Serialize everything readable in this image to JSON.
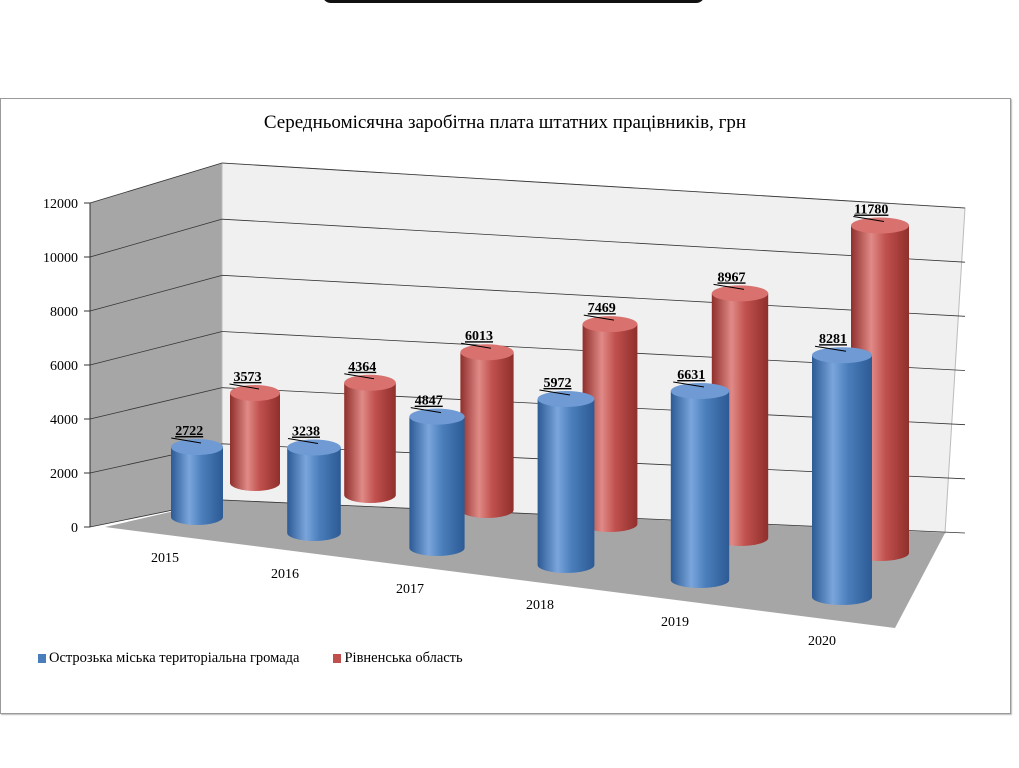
{
  "chart_data": {
    "type": "bar",
    "style": "3d-cylinder",
    "title": "Середньомісячна заробітна плата штатних працівників, грн",
    "categories": [
      "2015",
      "2016",
      "2017",
      "2018",
      "2019",
      "2020"
    ],
    "series": [
      {
        "name": "Острозька міська територіальна громада",
        "color": "#4a7ebb",
        "values": [
          2722,
          3238,
          4847,
          5972,
          6631,
          8281
        ]
      },
      {
        "name": "Рівненська область",
        "color": "#c0504d",
        "values": [
          3573,
          4364,
          6013,
          7469,
          8967,
          11780
        ]
      }
    ],
    "yticks": [
      "0",
      "2000",
      "4000",
      "6000",
      "8000",
      "10000",
      "12000"
    ],
    "ylim": [
      0,
      12000
    ],
    "grid": true,
    "legend": "bottom-left",
    "data_labels": [
      "2722",
      "3238",
      "4847",
      "5972",
      "6631",
      "8281",
      "3573",
      "4364",
      "6013",
      "7469",
      "8967",
      "11780"
    ]
  }
}
